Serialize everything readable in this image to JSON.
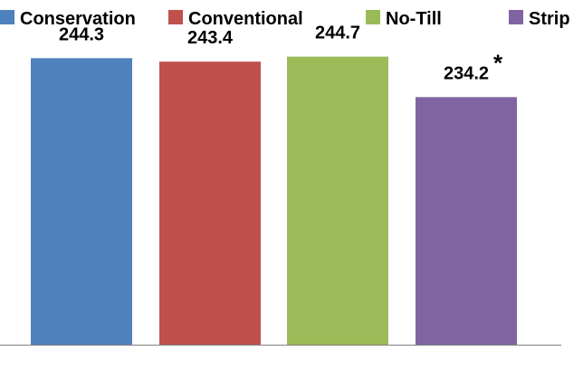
{
  "chart_data": {
    "type": "bar",
    "title": "",
    "xlabel": "",
    "ylabel": "",
    "categories": [
      "Conservation",
      "Conventional",
      "No-Till",
      "Strip"
    ],
    "values": [
      244.3,
      243.4,
      244.7,
      234.2
    ],
    "value_labels": [
      "244.3",
      "243.4",
      "244.7",
      "234.2"
    ],
    "annotations": [
      {
        "category": "Strip",
        "text": "*"
      }
    ],
    "colors": [
      "#4F81BD",
      "#C0504D",
      "#9BBB59",
      "#8064A2"
    ],
    "axis_baseline_color": "#808080",
    "ylim": [
      170,
      250
    ],
    "legend": {
      "position": "top",
      "entries": [
        "Conservation",
        "Conventional",
        "No-Till",
        "Strip"
      ]
    },
    "grid": false,
    "axes_visible": false
  }
}
